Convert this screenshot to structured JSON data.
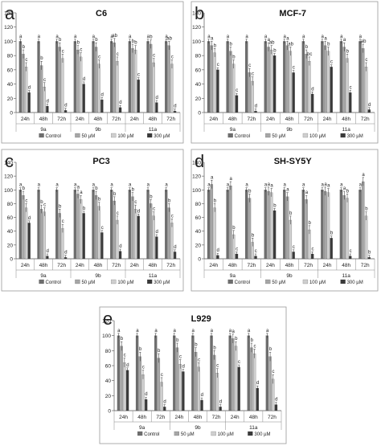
{
  "figure": {
    "legend_labels": [
      "Control",
      "50 µM",
      "100 µM",
      "300 µM"
    ],
    "colors": [
      "#6e6e6e",
      "#a6a6a6",
      "#cfcfcf",
      "#3a3a3a"
    ]
  },
  "chart_data": [
    {
      "type": "bar",
      "panel_letter": "a",
      "title": "C6",
      "groups": [
        "9a",
        "9b",
        "11a"
      ],
      "categories": [
        "24h",
        "48h",
        "72h",
        "24h",
        "48h",
        "72h",
        "24h",
        "48h",
        "72h"
      ],
      "ylim": [
        0,
        140
      ],
      "yticks": [
        0,
        20,
        40,
        60,
        80,
        100,
        120,
        140
      ],
      "legend": "bottom",
      "grid": false,
      "series": [
        {
          "name": "Control",
          "values": [
            100,
            100,
            100,
            100,
            100,
            100,
            100,
            100,
            100
          ],
          "letters": [
            "a",
            "a",
            "a",
            "a",
            "a",
            "a",
            "a",
            "a",
            "a"
          ]
        },
        {
          "name": "50 µM",
          "values": [
            82,
            66,
            92,
            88,
            92,
            98,
            90,
            96,
            94
          ],
          "letters": [
            "b",
            "b",
            "b",
            "b",
            "b",
            "ab",
            "b",
            "b",
            "ab"
          ]
        },
        {
          "name": "100 µM",
          "values": [
            64,
            36,
            76,
            78,
            68,
            72,
            88,
            70,
            68
          ],
          "letters": [
            "c",
            "c",
            "c",
            "c",
            "c",
            "c",
            "b",
            "c",
            "c"
          ]
        },
        {
          "name": "300 µM",
          "values": [
            28,
            9,
            3,
            40,
            18,
            7,
            46,
            14,
            2
          ],
          "letters": [
            "d",
            "d",
            "d",
            "d",
            "d",
            "d",
            "c",
            "d",
            "d"
          ]
        }
      ]
    },
    {
      "type": "bar",
      "panel_letter": "b",
      "title": "MCF-7",
      "groups": [
        "9a",
        "9b",
        "11a"
      ],
      "categories": [
        "24h",
        "48h",
        "72h",
        "24h",
        "48h",
        "72h",
        "24h",
        "48h",
        "72h"
      ],
      "ylim": [
        0,
        140
      ],
      "yticks": [
        0,
        20,
        40,
        60,
        80,
        100,
        120,
        140
      ],
      "legend": "bottom",
      "grid": false,
      "series": [
        {
          "name": "Control",
          "values": [
            100,
            100,
            100,
            100,
            100,
            100,
            100,
            100,
            100
          ],
          "letters": [
            "a",
            "a",
            "a",
            "a",
            "a",
            "a",
            "a",
            "a",
            "a"
          ]
        },
        {
          "name": "50 µM",
          "values": [
            94,
            86,
            56,
            92,
            94,
            82,
            94,
            92,
            90
          ],
          "letters": [
            "a",
            "b",
            "c",
            "a",
            "a",
            "b",
            "a",
            "a",
            "ab"
          ]
        },
        {
          "name": "100 µM",
          "values": [
            84,
            68,
            44,
            88,
            86,
            72,
            86,
            76,
            64
          ],
          "letters": [
            "b",
            "b",
            "c",
            "ab",
            "ab",
            "bc",
            "b",
            "b",
            "c"
          ]
        },
        {
          "name": "300 µM",
          "values": [
            60,
            24,
            2,
            80,
            56,
            26,
            64,
            28,
            4
          ],
          "letters": [
            "c",
            "c",
            "d",
            "b",
            "c",
            "d",
            "c",
            "c",
            "d"
          ]
        }
      ]
    },
    {
      "type": "bar",
      "panel_letter": "c",
      "title": "PC3",
      "groups": [
        "9a",
        "9b",
        "11a"
      ],
      "categories": [
        "24h",
        "48h",
        "72h",
        "24h",
        "48h",
        "72h",
        "24h",
        "48h",
        "72h"
      ],
      "ylim": [
        0,
        140
      ],
      "yticks": [
        0,
        20,
        40,
        60,
        80,
        100,
        120,
        140
      ],
      "legend": "bottom",
      "grid": false,
      "series": [
        {
          "name": "Control",
          "values": [
            100,
            100,
            100,
            100,
            100,
            100,
            100,
            100,
            100
          ],
          "letters": [
            "a",
            "a",
            "a",
            "a",
            "a",
            "a",
            "a",
            "a",
            "a"
          ]
        },
        {
          "name": "50 µM",
          "values": [
            92,
            72,
            66,
            94,
            92,
            84,
            90,
            80,
            74
          ],
          "letters": [
            "b",
            "b",
            "b",
            "a",
            "b",
            "b",
            "b",
            "b",
            "b"
          ]
        },
        {
          "name": "100 µM",
          "values": [
            74,
            68,
            44,
            86,
            76,
            56,
            72,
            62,
            52
          ],
          "letters": [
            "c",
            "c",
            "c",
            "a",
            "b",
            "c",
            "c",
            "c",
            "c"
          ]
        },
        {
          "name": "300 µM",
          "values": [
            52,
            4,
            2,
            66,
            38,
            11,
            62,
            32,
            10
          ],
          "letters": [
            "d",
            "d",
            "d",
            "b",
            "c",
            "d",
            "d",
            "d",
            "d"
          ]
        }
      ]
    },
    {
      "type": "bar",
      "panel_letter": "d",
      "title": "SH-SY5Y",
      "groups": [
        "9a",
        "9b",
        "11a"
      ],
      "categories": [
        "24h",
        "48h",
        "72h",
        "24h",
        "48h",
        "72h",
        "24h",
        "48h",
        "72h"
      ],
      "ylim": [
        0,
        140
      ],
      "yticks": [
        0,
        20,
        40,
        60,
        80,
        100,
        120,
        140
      ],
      "legend": "bottom",
      "grid": false,
      "series": [
        {
          "name": "Control",
          "values": [
            100,
            100,
            100,
            100,
            100,
            100,
            100,
            100,
            100
          ],
          "letters": [
            "a",
            "a",
            "a",
            "a",
            "a",
            "a",
            "a",
            "a",
            "a"
          ]
        },
        {
          "name": "50 µM",
          "values": [
            108,
            106,
            88,
            98,
            90,
            86,
            98,
            92,
            112
          ],
          "letters": [
            "a",
            "a",
            "b",
            "a",
            "a",
            "a",
            "a",
            "a",
            "a"
          ]
        },
        {
          "name": "100 µM",
          "values": [
            74,
            35,
            24,
            96,
            56,
            42,
            96,
            88,
            62
          ],
          "letters": [
            "b",
            "b",
            "b",
            "a",
            "b",
            "b",
            "a",
            "b",
            "b"
          ]
        },
        {
          "name": "300 µM",
          "values": [
            5,
            7,
            4,
            70,
            10,
            7,
            30,
            4,
            2
          ],
          "letters": [
            "d",
            "c",
            "c",
            "b",
            "c",
            "c",
            "b",
            "c",
            "b"
          ]
        }
      ]
    },
    {
      "type": "bar",
      "panel_letter": "e",
      "title": "L929",
      "groups": [
        "9a",
        "9b",
        "11a"
      ],
      "categories": [
        "24h",
        "48h",
        "72h",
        "24h",
        "48h",
        "72h",
        "24h",
        "48h",
        "72h"
      ],
      "ylim": [
        0,
        120
      ],
      "yticks": [
        0,
        20,
        40,
        60,
        80,
        100,
        120
      ],
      "legend": "bottom",
      "grid": false,
      "series": [
        {
          "name": "Control",
          "values": [
            100,
            100,
            100,
            100,
            100,
            100,
            100,
            100,
            100
          ],
          "letters": [
            "a",
            "a",
            "a",
            "a",
            "a",
            "a",
            "a",
            "a",
            "a"
          ]
        },
        {
          "name": "50 µM",
          "values": [
            86,
            72,
            70,
            84,
            78,
            74,
            96,
            84,
            72
          ],
          "letters": [
            "b",
            "b",
            "b",
            "b",
            "b",
            "b",
            "a",
            "b",
            "b"
          ]
        },
        {
          "name": "100 µM",
          "values": [
            64,
            48,
            38,
            62,
            58,
            50,
            86,
            76,
            42
          ],
          "letters": [
            "c",
            "c",
            "c",
            "c",
            "c",
            "c",
            "b",
            "c",
            "c"
          ]
        },
        {
          "name": "300 µM",
          "values": [
            54,
            15,
            5,
            52,
            14,
            5,
            58,
            30,
            8
          ],
          "letters": [
            "d",
            "d",
            "d",
            "d",
            "d",
            "d",
            "c",
            "d",
            "d"
          ]
        }
      ]
    }
  ]
}
